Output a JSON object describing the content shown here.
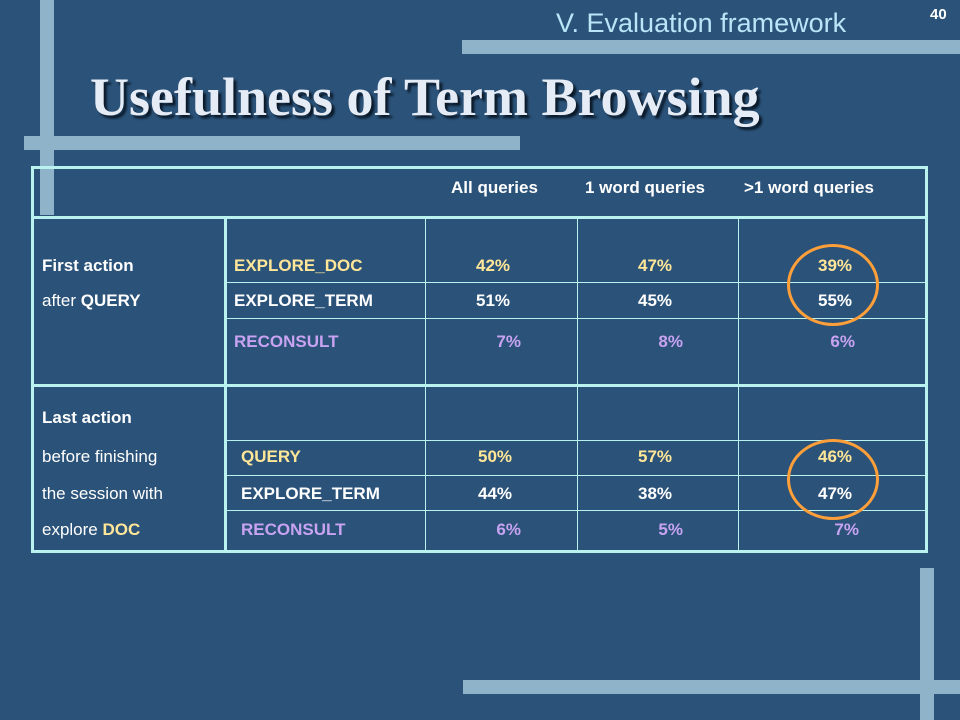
{
  "slide": {
    "section": "V. Evaluation framework",
    "page_number": "40",
    "title": "Usefulness of Term Browsing"
  },
  "table": {
    "headers": [
      "All queries",
      "1 word queries",
      ">1 word queries"
    ],
    "groups": [
      {
        "label_lines": [
          {
            "text": "First action",
            "highlight": ""
          },
          {
            "prefix": "after ",
            "highlight": "QUERY"
          }
        ],
        "rows": [
          {
            "action": "EXPLORE_DOC",
            "all": "42%",
            "one": "47%",
            "multi": "39%"
          },
          {
            "action": "EXPLORE_TERM",
            "all": "51%",
            "one": "45%",
            "multi": "55%"
          },
          {
            "action": "RECONSULT",
            "all": "7%",
            "one": "8%",
            "multi": "6%"
          }
        ]
      },
      {
        "label_lines": [
          {
            "text": "Last action"
          },
          {
            "text": "before finishing"
          },
          {
            "text": "the session with"
          },
          {
            "prefix": "explore ",
            "highlight": "DOC"
          }
        ],
        "rows": [
          {
            "action": "QUERY",
            "all": "50%",
            "one": "57%",
            "multi": "46%"
          },
          {
            "action": "EXPLORE_TERM",
            "all": "44%",
            "one": "38%",
            "multi": "47%"
          },
          {
            "action": "RECONSULT",
            "all": "6%",
            "one": "5%",
            "multi": "7%"
          }
        ]
      }
    ]
  },
  "colors": {
    "background": "#2b5278",
    "accent_bars": "#8fb3c8",
    "table_border": "#b9f2ee",
    "reconsult_text": "#c7a3f2",
    "highlight_text": "#ffe699",
    "circle": "#ff9f3a"
  }
}
